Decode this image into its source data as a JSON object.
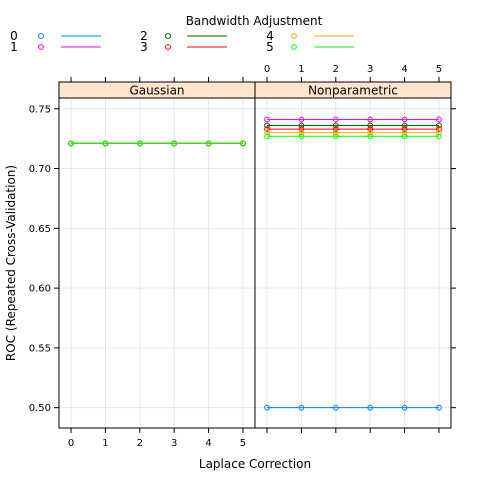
{
  "chart_data": {
    "type": "line",
    "panels": [
      "Gaussian",
      "Nonparametric"
    ],
    "x": [
      0,
      1,
      2,
      3,
      4,
      5
    ],
    "xlabel": "Laplace Correction",
    "ylabel": "ROC (Repeated Cross-Validation)",
    "ylim": [
      0.483,
      0.759
    ],
    "yticks": [
      0.5,
      0.55,
      0.6,
      0.65,
      0.7,
      0.75
    ],
    "ytick_labels": [
      "0.50",
      "0.55",
      "0.60",
      "0.65",
      "0.70",
      "0.75"
    ],
    "xtick_labels": [
      "0",
      "1",
      "2",
      "3",
      "4",
      "5"
    ],
    "grid": true,
    "legend": {
      "title": "Bandwidth Adjustment",
      "placement": "top",
      "entries": [
        {
          "name": "0",
          "color": "#0080ff"
        },
        {
          "name": "1",
          "color": "#ff00ff"
        },
        {
          "name": "2",
          "color": "#006400"
        },
        {
          "name": "3",
          "color": "#ff0000"
        },
        {
          "name": "4",
          "color": "#ffa500"
        },
        {
          "name": "5",
          "color": "#00ff00"
        }
      ]
    },
    "series": [
      {
        "name": "0",
        "panel": "Gaussian",
        "values": [
          0.721,
          0.721,
          0.721,
          0.721,
          0.721,
          0.721
        ]
      },
      {
        "name": "1",
        "panel": "Gaussian",
        "values": [
          0.721,
          0.721,
          0.721,
          0.721,
          0.721,
          0.721
        ]
      },
      {
        "name": "2",
        "panel": "Gaussian",
        "values": [
          0.721,
          0.721,
          0.721,
          0.721,
          0.721,
          0.721
        ]
      },
      {
        "name": "3",
        "panel": "Gaussian",
        "values": [
          0.721,
          0.721,
          0.721,
          0.721,
          0.721,
          0.721
        ]
      },
      {
        "name": "4",
        "panel": "Gaussian",
        "values": [
          0.721,
          0.721,
          0.721,
          0.721,
          0.721,
          0.721
        ]
      },
      {
        "name": "5",
        "panel": "Gaussian",
        "values": [
          0.721,
          0.721,
          0.721,
          0.721,
          0.721,
          0.721
        ]
      },
      {
        "name": "0",
        "panel": "Nonparametric",
        "values": [
          0.5,
          0.5,
          0.5,
          0.5,
          0.5,
          0.5
        ]
      },
      {
        "name": "1",
        "panel": "Nonparametric",
        "values": [
          0.741,
          0.741,
          0.741,
          0.741,
          0.741,
          0.741
        ]
      },
      {
        "name": "2",
        "panel": "Nonparametric",
        "values": [
          0.736,
          0.736,
          0.736,
          0.736,
          0.736,
          0.736
        ]
      },
      {
        "name": "3",
        "panel": "Nonparametric",
        "values": [
          0.733,
          0.733,
          0.733,
          0.733,
          0.733,
          0.733
        ]
      },
      {
        "name": "4",
        "panel": "Nonparametric",
        "values": [
          0.73,
          0.73,
          0.73,
          0.73,
          0.73,
          0.73
        ]
      },
      {
        "name": "5",
        "panel": "Nonparametric",
        "values": [
          0.727,
          0.727,
          0.727,
          0.727,
          0.727,
          0.727
        ]
      }
    ]
  }
}
